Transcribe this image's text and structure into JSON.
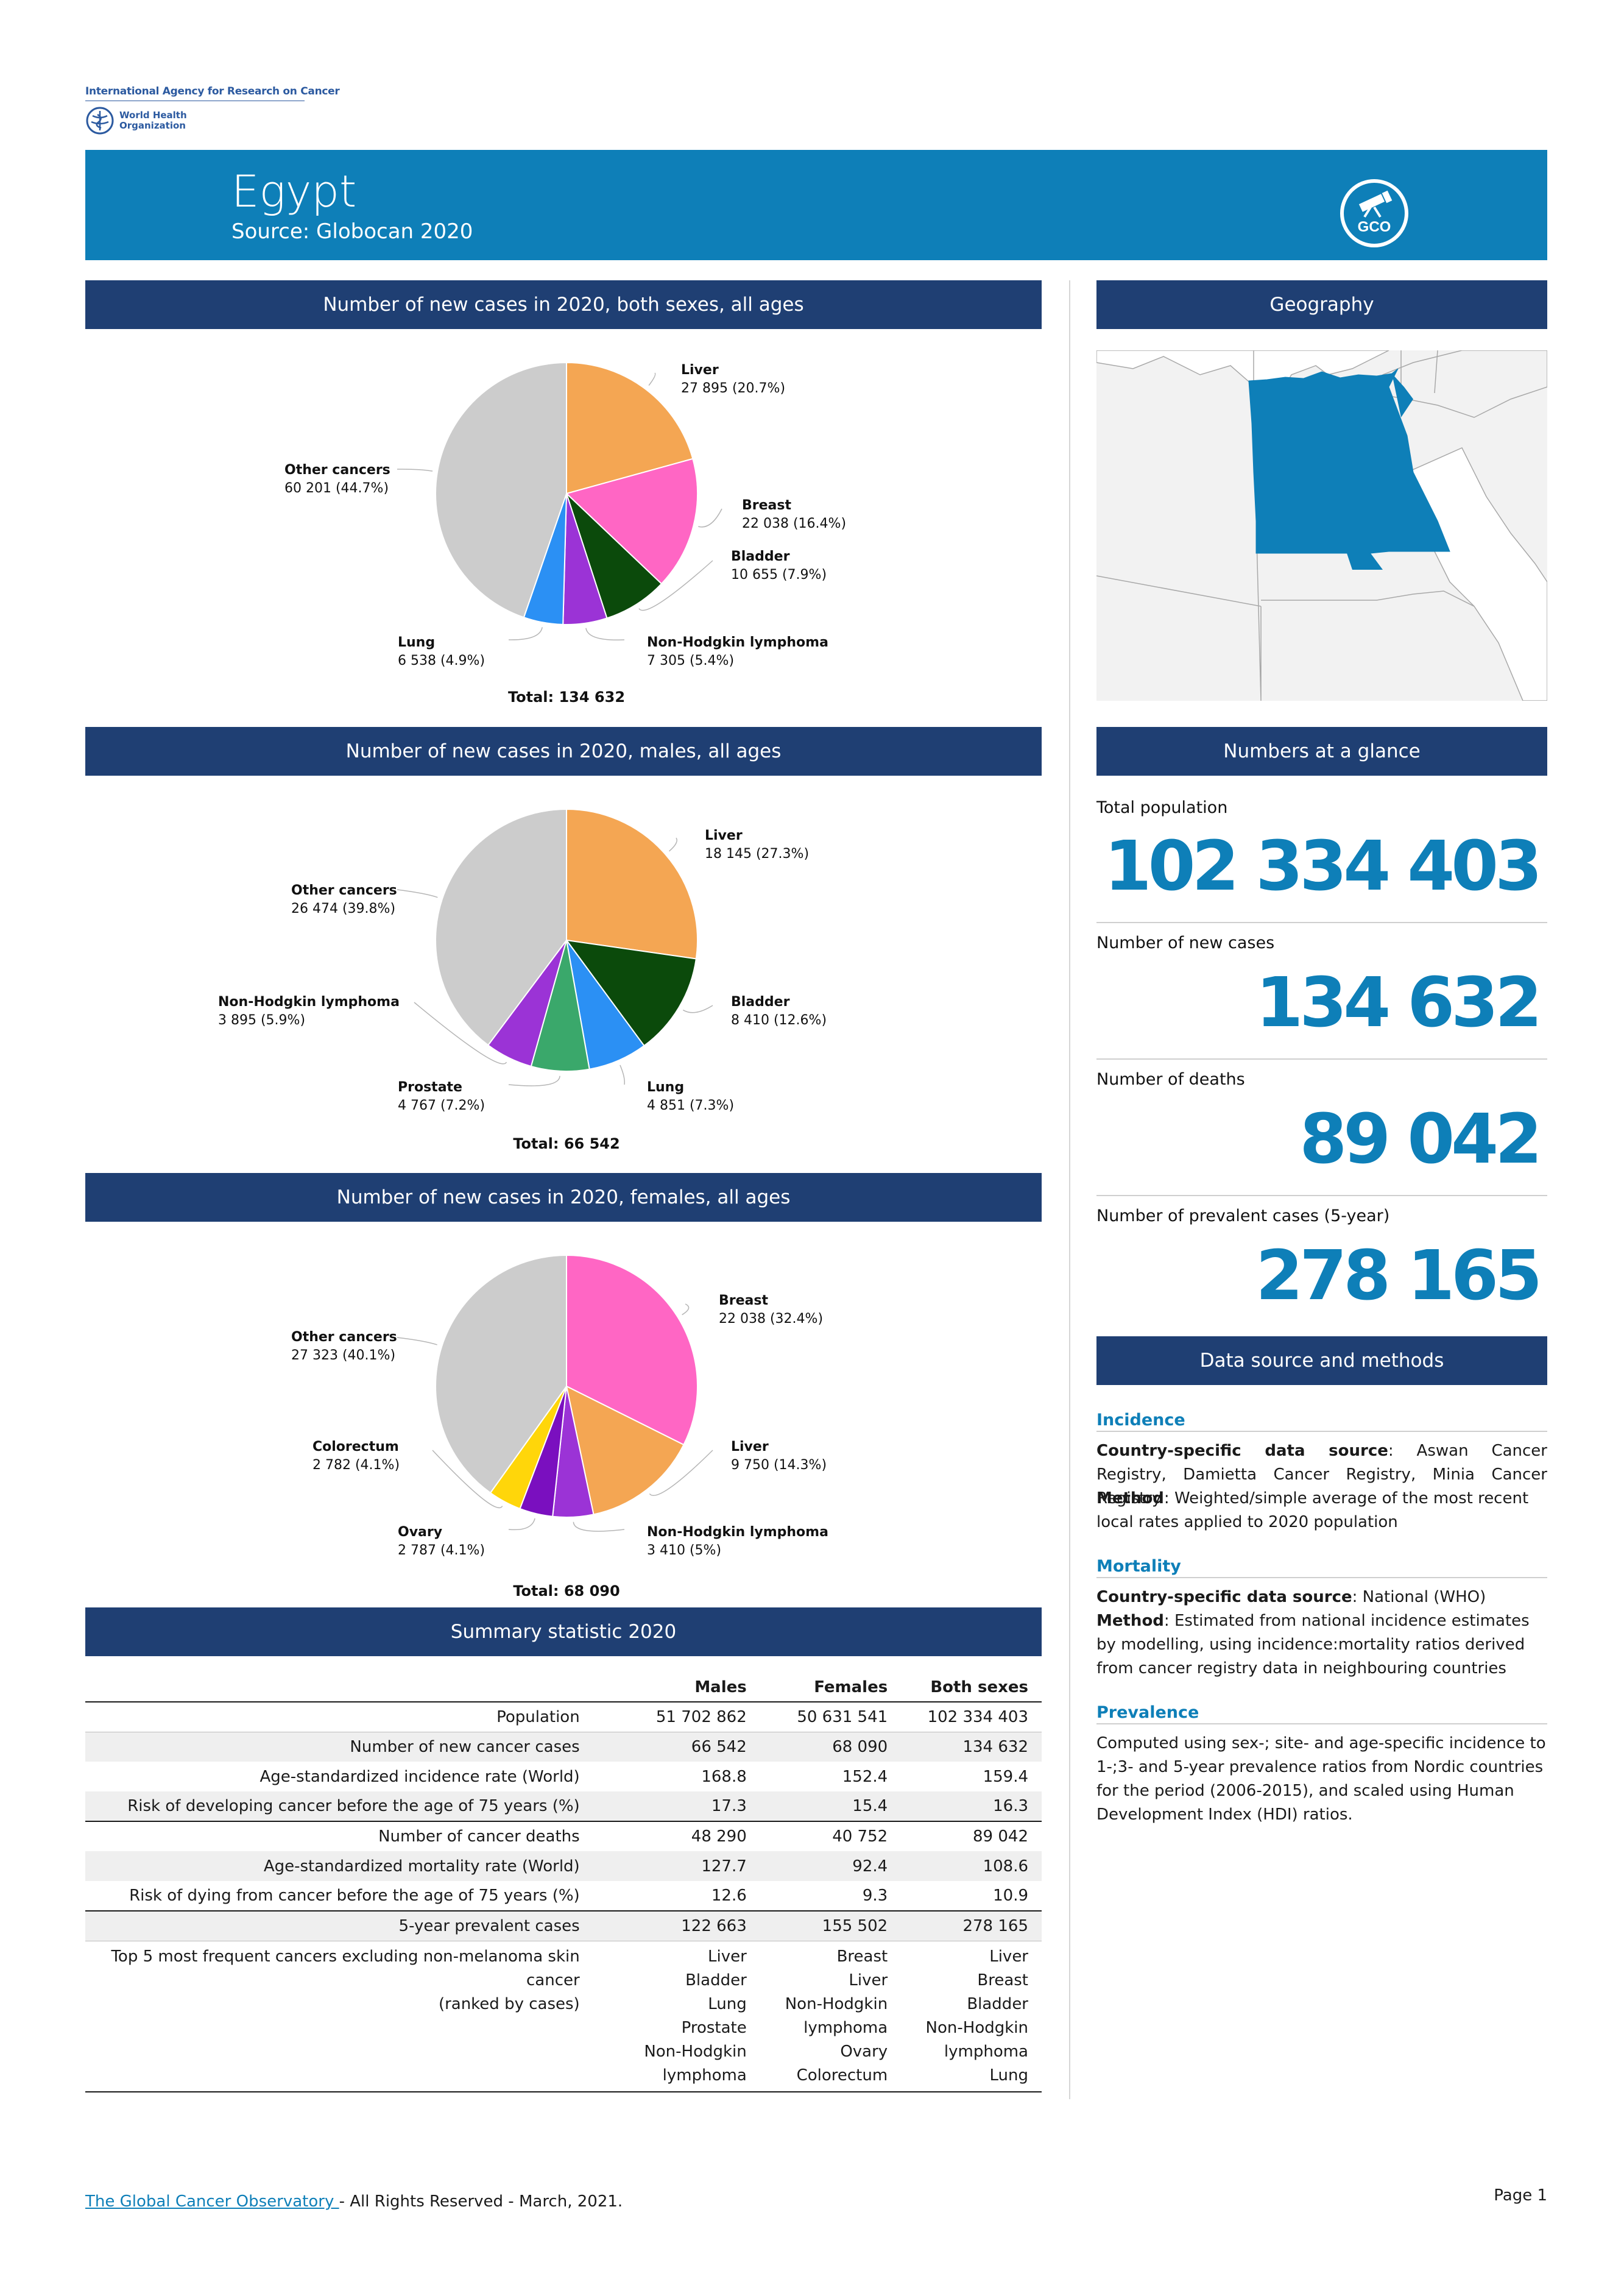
{
  "org": {
    "iarc": "International Agency for Research on Cancer",
    "who_line1": "World Health",
    "who_line2": "Organization"
  },
  "banner": {
    "title": "Egypt",
    "source": "Source: Globocan 2020",
    "logo_text": "GCO"
  },
  "sections": {
    "pie_both": "Number of new cases in 2020, both sexes, all ages",
    "pie_males": "Number of new cases in 2020, males, all ages",
    "pie_females": "Number of new cases in 2020, females, all ages",
    "summary": "Summary statistic 2020",
    "geography": "Geography",
    "glance": "Numbers at a glance",
    "datasource": "Data source and methods"
  },
  "chart_data": [
    {
      "type": "pie",
      "title": "Number of new cases in 2020, both sexes, all ages",
      "total_label": "Total: 134 632",
      "slices": [
        {
          "name": "Liver",
          "value": 27895,
          "display": "27 895 (20.7%)",
          "color": "#f4a653"
        },
        {
          "name": "Breast",
          "value": 22038,
          "display": "22 038 (16.4%)",
          "color": "#ff66c4"
        },
        {
          "name": "Bladder",
          "value": 10655,
          "display": "10 655 (7.9%)",
          "color": "#0b4a0b"
        },
        {
          "name": "Non-Hodgkin lymphoma",
          "value": 7305,
          "display": "7 305 (5.4%)",
          "color": "#9b33d6"
        },
        {
          "name": "Lung",
          "value": 6538,
          "display": "6 538 (4.9%)",
          "color": "#2b90f4"
        },
        {
          "name": "Other cancers",
          "value": 60201,
          "display": "60 201 (44.7%)",
          "color": "#cccccc"
        }
      ]
    },
    {
      "type": "pie",
      "title": "Number of new cases in 2020, males, all ages",
      "total_label": "Total: 66 542",
      "slices": [
        {
          "name": "Liver",
          "value": 18145,
          "display": "18 145 (27.3%)",
          "color": "#f4a653"
        },
        {
          "name": "Bladder",
          "value": 8410,
          "display": "8 410 (12.6%)",
          "color": "#0b4a0b"
        },
        {
          "name": "Lung",
          "value": 4851,
          "display": "4 851 (7.3%)",
          "color": "#2b90f4"
        },
        {
          "name": "Prostate",
          "value": 4767,
          "display": "4 767 (7.2%)",
          "color": "#3aa86b"
        },
        {
          "name": "Non-Hodgkin lymphoma",
          "value": 3895,
          "display": "3 895 (5.9%)",
          "color": "#9b33d6"
        },
        {
          "name": "Other cancers",
          "value": 26474,
          "display": "26 474 (39.8%)",
          "color": "#cccccc"
        }
      ]
    },
    {
      "type": "pie",
      "title": "Number of new cases in 2020, females, all ages",
      "total_label": "Total: 68 090",
      "slices": [
        {
          "name": "Breast",
          "value": 22038,
          "display": "22 038 (32.4%)",
          "color": "#ff66c4"
        },
        {
          "name": "Liver",
          "value": 9750,
          "display": "9 750 (14.3%)",
          "color": "#f4a653"
        },
        {
          "name": "Non-Hodgkin lymphoma",
          "value": 3410,
          "display": "3 410 (5%)",
          "color": "#9b33d6"
        },
        {
          "name": "Ovary",
          "value": 2787,
          "display": "2 787 (4.1%)",
          "color": "#7a0fbf"
        },
        {
          "name": "Colorectum",
          "value": 2782,
          "display": "2 782 (4.1%)",
          "color": "#ffd60a"
        },
        {
          "name": "Other cancers",
          "value": 27323,
          "display": "27 323 (40.1%)",
          "color": "#cccccc"
        }
      ]
    }
  ],
  "glance": {
    "population_label": "Total population",
    "population": "102 334 403",
    "new_cases_label": "Number of new cases",
    "new_cases": "134 632",
    "deaths_label": "Number of deaths",
    "deaths": "89 042",
    "prevalent_label": "Number of prevalent cases (5-year)",
    "prevalent": "278 165"
  },
  "datasource": {
    "incidence_title": "Incidence",
    "incidence_src_key": "Country-specific data source",
    "incidence_src": ": Aswan Cancer Registry, Damietta Cancer Registry, Minia Cancer Registry",
    "incidence_method_key": "Method",
    "incidence_method": ": Weighted/simple average of the most recent local rates applied to 2020 population",
    "mortality_title": "Mortality",
    "mortality_src_key": "Country-specific data source",
    "mortality_src": ": National (WHO)",
    "mortality_method_key": "Method",
    "mortality_method": ": Estimated from national incidence estimates by modelling, using incidence:mortality ratios derived from cancer registry data in neighbouring countries",
    "prevalence_title": "Prevalence",
    "prevalence_text": "Computed using sex-; site- and age-specific incidence to 1-;3- and 5-year prevalence ratios from Nordic countries for the period (2006-2015), and scaled using Human Development Index (HDI) ratios."
  },
  "summary": {
    "headers": [
      "Males",
      "Females",
      "Both sexes"
    ],
    "rows": [
      {
        "label": "Population",
        "males": "51 702 862",
        "females": "50 631 541",
        "both": "102 334 403"
      },
      {
        "label": "Number of new cancer cases",
        "males": "66 542",
        "females": "68 090",
        "both": "134 632"
      },
      {
        "label": "Age-standardized incidence rate (World)",
        "males": "168.8",
        "females": "152.4",
        "both": "159.4"
      },
      {
        "label": "Risk of developing cancer before the age of 75 years (%)",
        "males": "17.3",
        "females": "15.4",
        "both": "16.3"
      },
      {
        "label": "Number of cancer deaths",
        "males": "48 290",
        "females": "40 752",
        "both": "89 042"
      },
      {
        "label": "Age-standardized mortality rate (World)",
        "males": "127.7",
        "females": "92.4",
        "both": "108.6"
      },
      {
        "label": "Risk of dying from cancer before the age of 75 years (%)",
        "males": "12.6",
        "females": "9.3",
        "both": "10.9"
      },
      {
        "label": "5-year prevalent cases",
        "males": "122 663",
        "females": "155 502",
        "both": "278 165"
      }
    ],
    "top5_label_1": "Top 5 most frequent cancers excluding non-melanoma skin cancer",
    "top5_label_2": "(ranked by cases)",
    "top5_males": [
      "Liver",
      "Bladder",
      "Lung",
      "Prostate",
      "Non-Hodgkin",
      "lymphoma"
    ],
    "top5_females": [
      "Breast",
      "Liver",
      "Non-Hodgkin",
      "lymphoma",
      "Ovary",
      "Colorectum"
    ],
    "top5_both": [
      "Liver",
      "Breast",
      "Bladder",
      "Non-Hodgkin",
      "lymphoma",
      "Lung"
    ]
  },
  "footer": {
    "link": "The Global Cancer Observatory ",
    "rest": " - All Rights Reserved - March, 2021.",
    "page": "Page 1"
  }
}
